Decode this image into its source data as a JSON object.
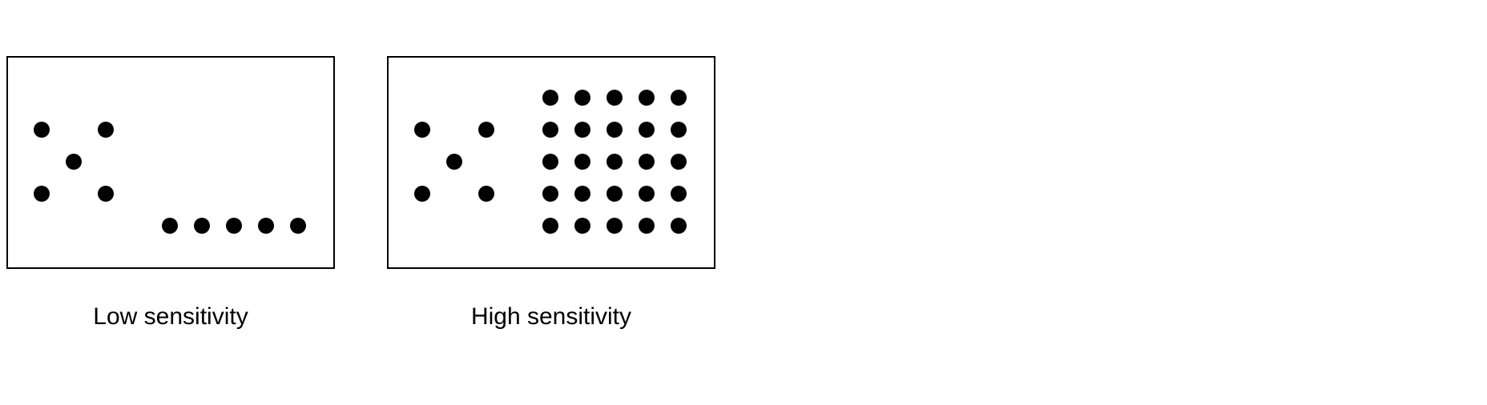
{
  "colors": {
    "background": "#ffffff",
    "stroke": "#000000",
    "dot": "#000000",
    "text": "#000000"
  },
  "panels": [
    {
      "id": "low",
      "label": "Low sensitivity",
      "dot_groups": [
        {
          "pattern": "x-five",
          "count": 5
        },
        {
          "pattern": "row",
          "count": 5
        }
      ]
    },
    {
      "id": "high",
      "label": "High sensitivity",
      "dot_groups": [
        {
          "pattern": "x-five",
          "count": 5
        },
        {
          "pattern": "grid",
          "rows": 5,
          "cols": 5,
          "count": 25
        }
      ]
    }
  ]
}
